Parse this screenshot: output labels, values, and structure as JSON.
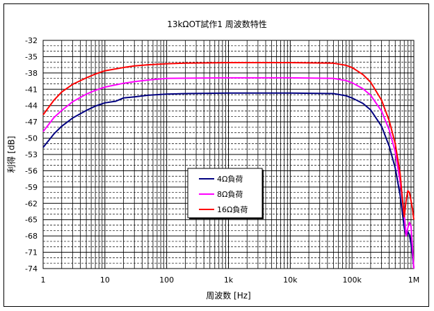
{
  "chart_data": {
    "type": "line",
    "title": "13kΩOT試作1 周波数特性",
    "xlabel": "周波数 [Hz]",
    "ylabel": "利得 [dB]",
    "x_scale": "log",
    "xlim": [
      1,
      1000000
    ],
    "ylim": [
      -74,
      -32
    ],
    "x_ticks": [
      1,
      10,
      100,
      1000,
      10000,
      100000,
      1000000
    ],
    "x_tick_labels": [
      "1",
      "10",
      "100",
      "1k",
      "10k",
      "100k",
      "1M"
    ],
    "y_ticks": [
      -32,
      -35,
      -38,
      -41,
      -44,
      -47,
      -50,
      -53,
      -56,
      -59,
      -62,
      -65,
      -68,
      -71,
      -74
    ],
    "y_tick_labels": [
      "-32",
      "-35",
      "-38",
      "-41",
      "-44",
      "-47",
      "-50",
      "-53",
      "-56",
      "-59",
      "-62",
      "-65",
      "-68",
      "-71",
      "-74"
    ],
    "grid": true,
    "legend_position": "lower-center",
    "series": [
      {
        "name": "4Ω負荷",
        "color": "#000080",
        "points": [
          [
            1,
            -51.7
          ],
          [
            1.5,
            -49.2
          ],
          [
            2,
            -47.8
          ],
          [
            3,
            -46.3
          ],
          [
            5,
            -44.9
          ],
          [
            7,
            -44.1
          ],
          [
            10,
            -43.5
          ],
          [
            15,
            -43.2
          ],
          [
            20,
            -42.6
          ],
          [
            30,
            -42.4
          ],
          [
            50,
            -42.1
          ],
          [
            100,
            -41.9
          ],
          [
            200,
            -41.8
          ],
          [
            1000,
            -41.7
          ],
          [
            10000,
            -41.7
          ],
          [
            50000,
            -41.8
          ],
          [
            80000,
            -42.2
          ],
          [
            100000,
            -42.6
          ],
          [
            150000,
            -43.6
          ],
          [
            200000,
            -44.8
          ],
          [
            300000,
            -47.8
          ],
          [
            400000,
            -51.5
          ],
          [
            500000,
            -55.5
          ],
          [
            600000,
            -60.5
          ],
          [
            700000,
            -66.5
          ],
          [
            750000,
            -68
          ],
          [
            800000,
            -67.2
          ],
          [
            850000,
            -67.8
          ],
          [
            900000,
            -69.5
          ],
          [
            950000,
            -71.5
          ],
          [
            1000000,
            -74
          ]
        ]
      },
      {
        "name": "8Ω負荷",
        "color": "#ff00ff",
        "points": [
          [
            1,
            -48.8
          ],
          [
            1.5,
            -46.2
          ],
          [
            2,
            -44.9
          ],
          [
            3,
            -43.3
          ],
          [
            5,
            -41.9
          ],
          [
            7,
            -41.2
          ],
          [
            10,
            -40.6
          ],
          [
            20,
            -39.9
          ],
          [
            30,
            -39.6
          ],
          [
            50,
            -39.3
          ],
          [
            100,
            -39.0
          ],
          [
            1000,
            -38.9
          ],
          [
            10000,
            -38.9
          ],
          [
            50000,
            -39.0
          ],
          [
            80000,
            -39.4
          ],
          [
            100000,
            -39.8
          ],
          [
            150000,
            -40.9
          ],
          [
            200000,
            -42.1
          ],
          [
            300000,
            -45
          ],
          [
            400000,
            -48.5
          ],
          [
            500000,
            -52.5
          ],
          [
            600000,
            -58
          ],
          [
            700000,
            -64
          ],
          [
            750000,
            -68
          ],
          [
            800000,
            -66.5
          ],
          [
            850000,
            -65.5
          ],
          [
            900000,
            -66.2
          ],
          [
            950000,
            -70
          ],
          [
            1000000,
            -74
          ]
        ]
      },
      {
        "name": "16Ω負荷",
        "color": "#ff0000",
        "points": [
          [
            1,
            -45.7
          ],
          [
            1.5,
            -43
          ],
          [
            2,
            -41.5
          ],
          [
            3,
            -40.1
          ],
          [
            5,
            -38.9
          ],
          [
            7,
            -38.2
          ],
          [
            10,
            -37.6
          ],
          [
            20,
            -37.0
          ],
          [
            30,
            -36.7
          ],
          [
            50,
            -36.5
          ],
          [
            100,
            -36.3
          ],
          [
            200,
            -36.2
          ],
          [
            1000,
            -36.1
          ],
          [
            10000,
            -36.1
          ],
          [
            50000,
            -36.2
          ],
          [
            80000,
            -36.6
          ],
          [
            100000,
            -37.0
          ],
          [
            150000,
            -38.3
          ],
          [
            200000,
            -39.7
          ],
          [
            300000,
            -43
          ],
          [
            400000,
            -46.8
          ],
          [
            500000,
            -51
          ],
          [
            600000,
            -56.5
          ],
          [
            650000,
            -61
          ],
          [
            700000,
            -64.5
          ],
          [
            750000,
            -61.5
          ],
          [
            800000,
            -59.7
          ],
          [
            850000,
            -60
          ],
          [
            900000,
            -61.5
          ],
          [
            950000,
            -63
          ],
          [
            1000000,
            -65
          ]
        ]
      }
    ]
  }
}
